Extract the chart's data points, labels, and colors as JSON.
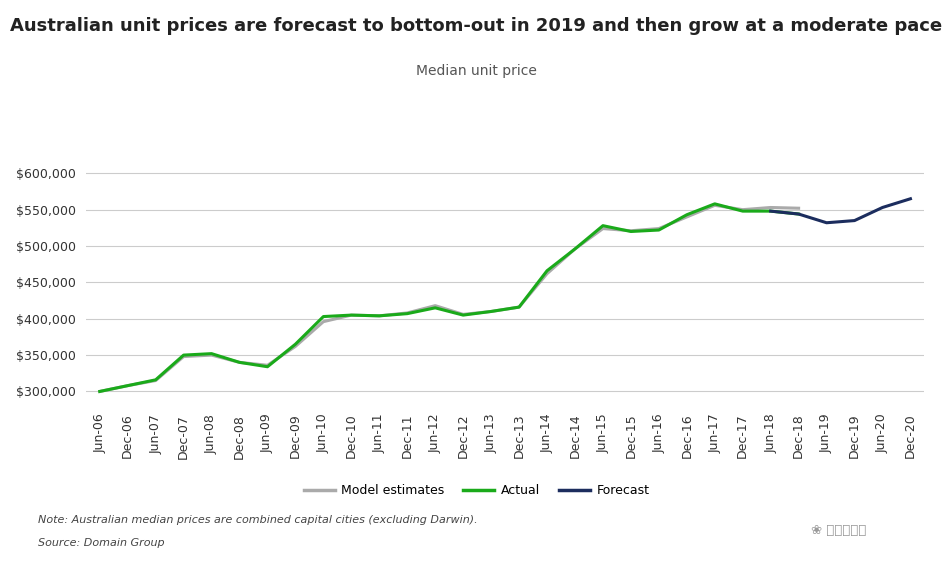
{
  "title": "Australian unit prices are forecast to bottom-out in 2019 and then grow at a moderate pace",
  "subtitle": "Median unit price",
  "note": "Note: Australian median prices are combined capital cities (excluding Darwin).",
  "source": "Source: Domain Group",
  "background_color": "#ffffff",
  "ylim": [
    280000,
    615000
  ],
  "yticks": [
    300000,
    350000,
    400000,
    450000,
    500000,
    550000,
    600000
  ],
  "x_labels": [
    "Jun-06",
    "Dec-06",
    "Jun-07",
    "Dec-07",
    "Jun-08",
    "Dec-08",
    "Jun-09",
    "Dec-09",
    "Jun-10",
    "Dec-10",
    "Jun-11",
    "Dec-11",
    "Jun-12",
    "Dec-12",
    "Jun-13",
    "Dec-13",
    "Jun-14",
    "Dec-14",
    "Jun-15",
    "Dec-15",
    "Jun-16",
    "Dec-16",
    "Jun-17",
    "Dec-17",
    "Jun-18",
    "Dec-18",
    "Jun-19",
    "Dec-19",
    "Jun-20",
    "Dec-20"
  ],
  "model_color": "#aaaaaa",
  "actual_color": "#1aaa1a",
  "forecast_color": "#1c2d5e",
  "model_data_indices": [
    0,
    1,
    2,
    3,
    4,
    5,
    6,
    7,
    8,
    9,
    10,
    11,
    12,
    13,
    14,
    15,
    16,
    17,
    18,
    19,
    20,
    21,
    22,
    23,
    24,
    25
  ],
  "model_data_values": [
    300000,
    308000,
    315000,
    348000,
    350000,
    340000,
    336000,
    362000,
    396000,
    405000,
    404000,
    408000,
    418000,
    406000,
    410000,
    416000,
    462000,
    496000,
    524000,
    521000,
    524000,
    540000,
    556000,
    550000,
    553000,
    552000
  ],
  "actual_data_indices": [
    0,
    1,
    2,
    3,
    4,
    5,
    6,
    7,
    8,
    9,
    10,
    11,
    12,
    13,
    14,
    15,
    16,
    17,
    18,
    19,
    20,
    21,
    22,
    23,
    24,
    25
  ],
  "actual_data_values": [
    300000,
    308000,
    316000,
    350000,
    352000,
    340000,
    334000,
    365000,
    403000,
    405000,
    404000,
    407000,
    415000,
    405000,
    410000,
    416000,
    466000,
    496000,
    528000,
    520000,
    522000,
    543000,
    558000,
    548000,
    548000,
    544000
  ],
  "forecast_data_indices": [
    24,
    25,
    26,
    27,
    28,
    29
  ],
  "forecast_data_values": [
    548000,
    544000,
    532000,
    535000,
    553000,
    565000
  ],
  "line_width": 2.2,
  "title_fontsize": 13,
  "subtitle_fontsize": 10,
  "tick_fontsize": 9,
  "legend_fontsize": 9,
  "note_fontsize": 8
}
